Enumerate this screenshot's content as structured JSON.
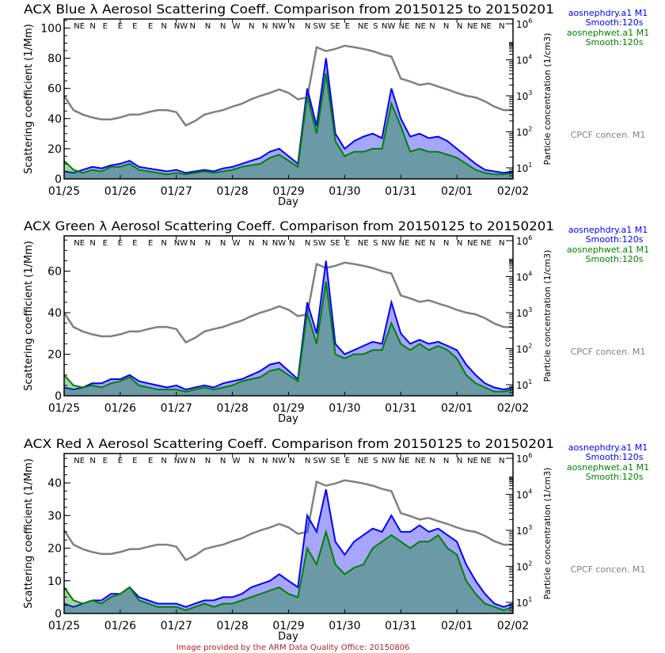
{
  "credit": "Image provided by the ARM Data Quality Office: 20150806",
  "colors": {
    "dry": "#0000ff",
    "wet": "#008000",
    "cpc": "#808080",
    "credit": "#b22222"
  },
  "legend": {
    "dry_name": "aosnephdry.a1 M1",
    "dry_smooth": "Smooth:120s",
    "wet_name": "aosnephwet.a1 M1",
    "wet_smooth": "Smooth:120s",
    "cpc_name": "CPCF concen. M1"
  },
  "wind_directions": [
    {
      "t": 0.27,
      "label": "NE"
    },
    {
      "t": 0.51,
      "label": "N"
    },
    {
      "t": 0.73,
      "label": "E"
    },
    {
      "t": 1.0,
      "label": "E"
    },
    {
      "t": 1.26,
      "label": "E"
    },
    {
      "t": 1.54,
      "label": "E"
    },
    {
      "t": 1.78,
      "label": "N"
    },
    {
      "t": 2.08,
      "label": "NW"
    },
    {
      "t": 2.29,
      "label": "N"
    },
    {
      "t": 2.56,
      "label": "N"
    },
    {
      "t": 2.83,
      "label": "N"
    },
    {
      "t": 3.07,
      "label": "W"
    },
    {
      "t": 3.34,
      "label": "N"
    },
    {
      "t": 3.58,
      "label": "N"
    },
    {
      "t": 3.83,
      "label": "NW"
    },
    {
      "t": 4.06,
      "label": "N"
    },
    {
      "t": 4.34,
      "label": "N"
    },
    {
      "t": 4.55,
      "label": "SW"
    },
    {
      "t": 4.83,
      "label": "SE"
    },
    {
      "t": 5.05,
      "label": "E"
    },
    {
      "t": 5.33,
      "label": "NE"
    },
    {
      "t": 5.55,
      "label": "S"
    },
    {
      "t": 5.78,
      "label": "NW"
    },
    {
      "t": 6.06,
      "label": "NE"
    },
    {
      "t": 6.35,
      "label": "NE"
    },
    {
      "t": 6.56,
      "label": "N"
    },
    {
      "t": 6.81,
      "label": "N"
    },
    {
      "t": 7.05,
      "label": "N"
    },
    {
      "t": 7.28,
      "label": "NE"
    },
    {
      "t": 7.52,
      "label": "NE"
    },
    {
      "t": 7.8,
      "label": "N"
    }
  ],
  "chart_data": [
    {
      "type": "line",
      "title": "ACX Blue λ Aerosol Scattering Coeff. Comparison from 20150125 to 20150201",
      "xlabel": "Day",
      "ylabel": "Scattering coefficient (1/Mm)",
      "y2label": "Particle concentration (1/cm3)",
      "x_ticks": [
        "01/25",
        "01/26",
        "01/27",
        "01/28",
        "01/29",
        "01/30",
        "01/31",
        "02/01",
        "02/02"
      ],
      "y_ticks": [
        0,
        20,
        40,
        60,
        80,
        100
      ],
      "ylim": [
        0,
        106
      ],
      "y2_ticks": [
        {
          "v": 10,
          "label": "10",
          "exp": "1"
        },
        {
          "v": 100,
          "label": "10",
          "exp": "2"
        },
        {
          "v": 1000,
          "label": "10",
          "exp": "3"
        },
        {
          "v": 10000,
          "label": "10",
          "exp": "4"
        },
        {
          "v": 1000000,
          "label": "10",
          "exp": "6"
        }
      ],
      "y2_scale": "log",
      "series": [
        {
          "name": "aosnephdry.a1 M1",
          "color": "#0000ff",
          "values": [
            5,
            4,
            6,
            8,
            7,
            9,
            10,
            12,
            8,
            7,
            6,
            5,
            6,
            4,
            5,
            6,
            5,
            7,
            8,
            10,
            12,
            14,
            18,
            20,
            15,
            10,
            60,
            35,
            80,
            30,
            20,
            25,
            28,
            30,
            27,
            60,
            40,
            28,
            30,
            27,
            28,
            25,
            20,
            15,
            10,
            6,
            5,
            4,
            5
          ]
        },
        {
          "name": "aosnephwet.a1 M1",
          "color": "#008000",
          "values": [
            12,
            6,
            4,
            6,
            5,
            8,
            8,
            10,
            6,
            5,
            4,
            3,
            4,
            3,
            4,
            5,
            4,
            5,
            6,
            8,
            9,
            10,
            14,
            16,
            12,
            8,
            55,
            30,
            70,
            25,
            15,
            18,
            18,
            20,
            20,
            50,
            35,
            18,
            20,
            18,
            18,
            16,
            14,
            10,
            6,
            4,
            3,
            3,
            4
          ]
        },
        {
          "name": "CPCF concen. M1",
          "color": "#808080",
          "axis": "right",
          "values": [
            1000,
            400,
            300,
            250,
            220,
            220,
            250,
            300,
            300,
            350,
            400,
            400,
            350,
            150,
            200,
            300,
            350,
            400,
            500,
            600,
            800,
            1000,
            1200,
            1500,
            1200,
            800,
            900,
            50000,
            30000,
            40000,
            60000,
            50000,
            40000,
            30000,
            20000,
            15000,
            3000,
            2500,
            2000,
            2200,
            1800,
            1500,
            1200,
            1000,
            900,
            700,
            500,
            400,
            400
          ]
        }
      ]
    },
    {
      "type": "line",
      "title": "ACX Green λ Aerosol Scattering Coeff. Comparison from 20150125 to 20150201",
      "xlabel": "Day",
      "ylabel": "Scattering coefficient (1/Mm)",
      "y2label": "Particle concentration (1/cm3)",
      "x_ticks": [
        "01/25",
        "01/26",
        "01/27",
        "01/28",
        "01/29",
        "01/30",
        "01/31",
        "02/01",
        "02/02"
      ],
      "y_ticks": [
        0,
        20,
        40,
        60
      ],
      "ylim": [
        0,
        77
      ],
      "y2_ticks": [
        {
          "v": 10,
          "label": "10",
          "exp": "1"
        },
        {
          "v": 100,
          "label": "10",
          "exp": "2"
        },
        {
          "v": 1000,
          "label": "10",
          "exp": "3"
        },
        {
          "v": 10000,
          "label": "10",
          "exp": "4"
        },
        {
          "v": 1000000,
          "label": "10",
          "exp": "6"
        }
      ],
      "y2_scale": "log",
      "series": [
        {
          "name": "aosnephdry.a1 M1",
          "color": "#0000ff",
          "values": [
            4,
            3,
            4,
            6,
            6,
            8,
            8,
            10,
            7,
            6,
            5,
            4,
            5,
            3,
            4,
            5,
            4,
            6,
            7,
            8,
            10,
            12,
            15,
            16,
            12,
            8,
            45,
            30,
            65,
            25,
            20,
            22,
            24,
            26,
            25,
            45,
            30,
            25,
            27,
            25,
            26,
            24,
            22,
            15,
            10,
            6,
            4,
            3,
            4
          ]
        },
        {
          "name": "aosnephwet.a1 M1",
          "color": "#008000",
          "values": [
            10,
            5,
            4,
            5,
            4,
            6,
            7,
            9,
            5,
            4,
            3,
            3,
            3,
            2,
            3,
            4,
            3,
            4,
            5,
            7,
            8,
            9,
            12,
            13,
            10,
            7,
            40,
            25,
            55,
            20,
            18,
            20,
            20,
            22,
            22,
            35,
            25,
            22,
            25,
            22,
            24,
            22,
            18,
            10,
            6,
            4,
            2,
            2,
            3
          ]
        },
        {
          "name": "CPCF concen. M1",
          "color": "#808080",
          "axis": "right",
          "values": [
            1000,
            400,
            300,
            250,
            220,
            220,
            250,
            300,
            300,
            350,
            400,
            400,
            350,
            150,
            200,
            300,
            350,
            400,
            500,
            600,
            800,
            1000,
            1200,
            1500,
            1200,
            800,
            900,
            50000,
            30000,
            40000,
            60000,
            50000,
            40000,
            30000,
            20000,
            15000,
            3000,
            2500,
            2000,
            2200,
            1800,
            1500,
            1200,
            1000,
            900,
            700,
            500,
            400,
            400
          ]
        }
      ]
    },
    {
      "type": "line",
      "title": "ACX Red λ Aerosol Scattering Coeff. Comparison from 20150125 to 20150201",
      "xlabel": "Day",
      "ylabel": "Scattering coefficient (1/Mm)",
      "y2label": "Particle concentration (1/cm3)",
      "x_ticks": [
        "01/25",
        "01/26",
        "01/27",
        "01/28",
        "01/29",
        "01/30",
        "01/31",
        "02/01",
        "02/02"
      ],
      "y_ticks": [
        0,
        10,
        20,
        30,
        40
      ],
      "ylim": [
        0,
        49
      ],
      "y2_ticks": [
        {
          "v": 10,
          "label": "10",
          "exp": "1"
        },
        {
          "v": 100,
          "label": "10",
          "exp": "2"
        },
        {
          "v": 1000,
          "label": "10",
          "exp": "3"
        },
        {
          "v": 10000,
          "label": "10",
          "exp": "4"
        },
        {
          "v": 1000000,
          "label": "10",
          "exp": "6"
        }
      ],
      "y2_scale": "log",
      "series": [
        {
          "name": "aosnephdry.a1 M1",
          "color": "#0000ff",
          "values": [
            3,
            2,
            3,
            4,
            4,
            6,
            6,
            8,
            5,
            4,
            3,
            3,
            3,
            2,
            3,
            4,
            4,
            5,
            5,
            6,
            8,
            9,
            10,
            12,
            10,
            8,
            30,
            25,
            38,
            22,
            18,
            22,
            24,
            26,
            25,
            30,
            25,
            25,
            27,
            25,
            26,
            24,
            22,
            15,
            10,
            6,
            3,
            2,
            3
          ]
        },
        {
          "name": "aosnephwet.a1 M1",
          "color": "#008000",
          "values": [
            8,
            4,
            3,
            4,
            3,
            5,
            6,
            8,
            4,
            3,
            2,
            2,
            2,
            1,
            2,
            3,
            2,
            3,
            3,
            4,
            5,
            6,
            7,
            8,
            6,
            5,
            20,
            15,
            25,
            15,
            12,
            14,
            15,
            20,
            22,
            24,
            22,
            20,
            22,
            22,
            24,
            20,
            18,
            10,
            6,
            3,
            2,
            1,
            2
          ]
        },
        {
          "name": "CPCF concen. M1",
          "color": "#808080",
          "axis": "right",
          "values": [
            1000,
            400,
            300,
            250,
            220,
            220,
            250,
            300,
            300,
            350,
            400,
            400,
            350,
            150,
            200,
            300,
            350,
            400,
            500,
            600,
            800,
            1000,
            1200,
            1500,
            1200,
            800,
            900,
            50000,
            30000,
            40000,
            60000,
            50000,
            40000,
            30000,
            20000,
            15000,
            3000,
            2500,
            2000,
            2200,
            1800,
            1500,
            1200,
            1000,
            900,
            700,
            500,
            400,
            400
          ]
        }
      ]
    }
  ]
}
